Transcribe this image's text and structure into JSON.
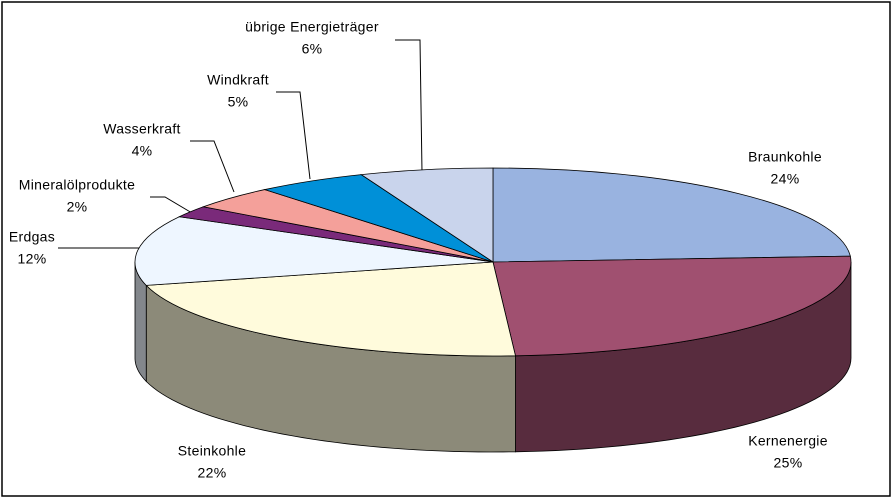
{
  "chart_data": {
    "type": "pie",
    "categories": [
      "Braunkohle",
      "Kernenergie",
      "Steinkohle",
      "Erdgas",
      "Mineralölprodukte",
      "Wasserkraft",
      "Windkraft",
      "übrige Energieträger"
    ],
    "values": [
      24,
      25,
      22,
      12,
      2,
      4,
      5,
      6
    ],
    "value_labels": [
      "24%",
      "25%",
      "22%",
      "12%",
      "2%",
      "4%",
      "5%",
      "6%"
    ],
    "colors": [
      "#99b3e0",
      "#a05070",
      "#fffbdc",
      "#eef6ff",
      "#7a2a7a",
      "#f4a09a",
      "#0090d8",
      "#c9d4ec"
    ]
  }
}
